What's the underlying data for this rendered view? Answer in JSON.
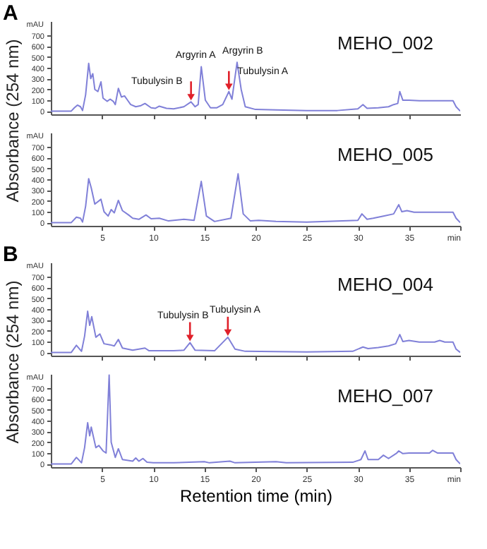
{
  "chart_data": [
    {
      "type": "line",
      "title": "A",
      "ylabel": "Absorbance (254 nm)",
      "tick_labels": "y",
      "grid": false,
      "xlim": [
        0,
        40
      ],
      "xticks": [
        5,
        10,
        15,
        20,
        25,
        30,
        35
      ],
      "ylim": [
        -30,
        830
      ],
      "yticks": [
        0,
        100,
        200,
        300,
        400,
        500,
        600,
        700
      ],
      "series": [
        {
          "name": "MEHO_002",
          "color": "#8080d8",
          "x": [
            0,
            2,
            2.3,
            2.6,
            2.9,
            3.1,
            3.4,
            3.7,
            3.9,
            4.1,
            4.3,
            4.6,
            4.9,
            5.1,
            5.5,
            5.8,
            6.1,
            6.3,
            6.6,
            6.9,
            7.2,
            7.5,
            7.8,
            8.3,
            8.8,
            9.2,
            9.8,
            10.2,
            10.6,
            11.3,
            12,
            13,
            13.7,
            14.1,
            14.4,
            14.7,
            15.1,
            15.6,
            16.2,
            16.8,
            17.4,
            17.7,
            18.2,
            18.6,
            19,
            20,
            22,
            25,
            28,
            30,
            30.5,
            30.9,
            32,
            33,
            33.5,
            33.9,
            34.1,
            34.4,
            35,
            36,
            38,
            39.3,
            39.6,
            40
          ],
          "values": [
            0,
            0,
            30,
            55,
            40,
            5,
            150,
            440,
            300,
            345,
            200,
            180,
            270,
            120,
            90,
            110,
            90,
            60,
            210,
            130,
            140,
            100,
            60,
            40,
            50,
            70,
            30,
            25,
            45,
            25,
            20,
            40,
            85,
            40,
            60,
            410,
            100,
            30,
            30,
            60,
            180,
            110,
            450,
            200,
            40,
            15,
            10,
            5,
            5,
            20,
            60,
            25,
            30,
            40,
            60,
            70,
            180,
            100,
            100,
            95,
            95,
            95,
            40,
            0
          ]
        }
      ],
      "annotations": [
        "mAU",
        {
          "text": "Argyrin A",
          "x": 14.7,
          "y": 410
        },
        {
          "text": "Argyrin B",
          "x": 18.2,
          "y": 450
        },
        {
          "text": "Tubulysin B",
          "x": 13.7,
          "y": 85
        },
        {
          "text": "Tubulysin A",
          "x": 17.4,
          "y": 180
        }
      ]
    },
    {
      "type": "line",
      "grid": false,
      "xlim": [
        0,
        40
      ],
      "xticks": [
        5,
        10,
        15,
        20,
        25,
        30,
        35,
        {
          "value": 40,
          "label": "min"
        }
      ],
      "ylim": [
        -30,
        830
      ],
      "yticks": [
        0,
        100,
        200,
        300,
        400,
        500,
        600,
        700
      ],
      "annotations": [
        "mAU"
      ],
      "series": [
        {
          "name": "MEHO_005",
          "color": "#8080d8",
          "x": [
            0,
            2,
            2.5,
            2.9,
            3.1,
            3.4,
            3.7,
            3.95,
            4.3,
            4.9,
            5.2,
            5.6,
            5.9,
            6.2,
            6.6,
            7,
            7.6,
            8,
            8.6,
            9.3,
            9.8,
            10.6,
            11.5,
            13,
            14,
            14.7,
            15.2,
            16,
            17.6,
            18.3,
            18.8,
            19.5,
            20.3,
            22,
            25,
            30,
            30.4,
            30.9,
            31.5,
            32.5,
            33.5,
            34,
            34.3,
            34.8,
            35.5,
            39.3,
            39.6,
            40
          ],
          "values": [
            0,
            0,
            50,
            40,
            5,
            150,
            405,
            320,
            170,
            215,
            100,
            60,
            120,
            90,
            205,
            110,
            70,
            40,
            30,
            70,
            35,
            40,
            15,
            30,
            20,
            380,
            60,
            10,
            40,
            450,
            80,
            15,
            20,
            10,
            5,
            20,
            80,
            30,
            40,
            60,
            80,
            165,
            100,
            110,
            95,
            95,
            40,
            0
          ]
        }
      ]
    },
    {
      "type": "line",
      "title": "B",
      "ylabel": "Absorbance (254 nm)",
      "tick_labels": "y",
      "grid": false,
      "xlim": [
        0,
        40
      ],
      "xticks": [
        5,
        10,
        15,
        20,
        25,
        30,
        35
      ],
      "ylim": [
        -30,
        830
      ],
      "yticks": [
        0,
        100,
        200,
        300,
        400,
        500,
        600,
        700
      ],
      "series": [
        {
          "name": "MEHO_004",
          "color": "#8080d8",
          "x": [
            0,
            2,
            2.5,
            3,
            3.3,
            3.6,
            3.8,
            4,
            4.4,
            4.8,
            5.2,
            5.8,
            6.2,
            6.6,
            7,
            8,
            9.2,
            9.6,
            12,
            13,
            13.6,
            14.1,
            16,
            17.3,
            18,
            19,
            25,
            29.5,
            30.5,
            31,
            32,
            33,
            33.7,
            34.1,
            34.4,
            35,
            36,
            37.5,
            38,
            38.5,
            39.3,
            39.6,
            40
          ],
          "values": [
            0,
            0,
            65,
            10,
            150,
            380,
            250,
            330,
            140,
            170,
            80,
            70,
            60,
            120,
            40,
            20,
            40,
            15,
            15,
            20,
            90,
            20,
            15,
            140,
            30,
            10,
            5,
            10,
            50,
            35,
            45,
            60,
            80,
            165,
            100,
            110,
            95,
            95,
            110,
            95,
            95,
            30,
            0
          ]
        }
      ],
      "annotations": [
        "mAU",
        {
          "text": "Tubulysin B",
          "x": 13.6,
          "y": 90
        },
        {
          "text": "Tubulysin A",
          "x": 17.3,
          "y": 140
        }
      ]
    },
    {
      "type": "line",
      "xlabel": "Retention time (min)",
      "grid": false,
      "xlim": [
        0,
        40
      ],
      "xticks": [
        5,
        10,
        15,
        20,
        25,
        30,
        35,
        {
          "value": 40,
          "label": "min"
        }
      ],
      "ylim": [
        -30,
        830
      ],
      "yticks": [
        0,
        100,
        200,
        300,
        400,
        500,
        600,
        700
      ],
      "annotations": [
        "mAU"
      ],
      "series": [
        {
          "name": "MEHO_007",
          "color": "#8080d8",
          "x": [
            0,
            2,
            2.5,
            3,
            3.3,
            3.6,
            3.8,
            3.95,
            4.4,
            4.7,
            5.1,
            5.4,
            5.7,
            5.9,
            6.3,
            6.6,
            7,
            8,
            8.3,
            8.6,
            9,
            9.4,
            10,
            12,
            15,
            15.5,
            17.5,
            18,
            22,
            23,
            29.5,
            30.3,
            30.7,
            31,
            32,
            32.5,
            33,
            33.8,
            34,
            34.4,
            35,
            37,
            37.3,
            37.8,
            39.3,
            39.6,
            40
          ],
          "values": [
            0,
            0,
            60,
            10,
            150,
            380,
            260,
            340,
            150,
            170,
            120,
            100,
            820,
            200,
            60,
            140,
            40,
            25,
            55,
            25,
            50,
            15,
            10,
            10,
            20,
            10,
            25,
            10,
            20,
            10,
            15,
            40,
            120,
            40,
            40,
            80,
            50,
            100,
            120,
            95,
            100,
            100,
            125,
            100,
            100,
            40,
            0
          ]
        }
      ]
    }
  ]
}
